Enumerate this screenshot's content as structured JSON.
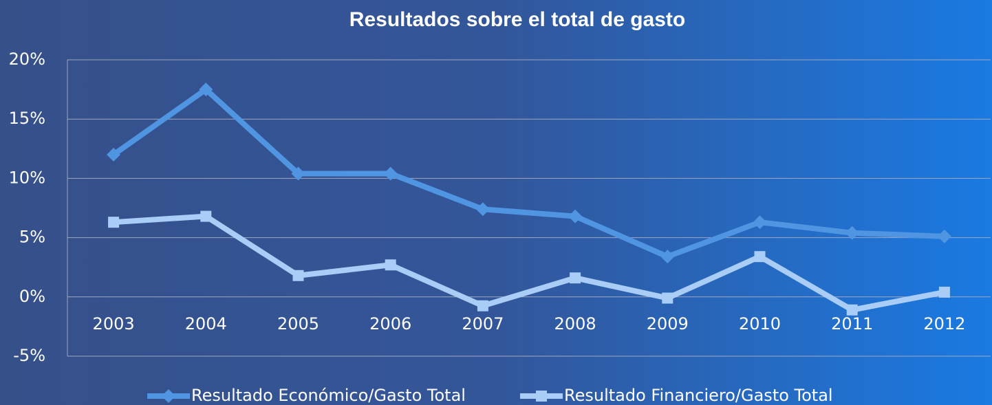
{
  "chart_data": {
    "type": "line",
    "title": "Resultados sobre el total de gasto",
    "categories": [
      "2003",
      "2004",
      "2005",
      "2006",
      "2007",
      "2008",
      "2009",
      "2010",
      "2011",
      "2012"
    ],
    "series": [
      {
        "name": "Resultado Económico/Gasto Total",
        "color": "#4f95e2",
        "marker": "diamond",
        "values": [
          12.0,
          17.5,
          10.4,
          10.4,
          7.4,
          6.8,
          3.4,
          6.3,
          5.4,
          5.1
        ]
      },
      {
        "name": "Resultado Financiero/Gasto Total",
        "color": "#a9cdf6",
        "marker": "square",
        "values": [
          6.3,
          6.8,
          1.8,
          2.7,
          -0.75,
          1.6,
          -0.1,
          3.4,
          -1.1,
          0.4
        ]
      }
    ],
    "ylim": [
      -5,
      20
    ],
    "yticks": [
      {
        "value": -5,
        "label": "-5%"
      },
      {
        "value": 0,
        "label": "0%"
      },
      {
        "value": 5,
        "label": "5%"
      },
      {
        "value": 10,
        "label": "10%"
      },
      {
        "value": 15,
        "label": "15%"
      },
      {
        "value": 20,
        "label": "20%"
      }
    ],
    "grid": true,
    "legend": "bottom"
  }
}
